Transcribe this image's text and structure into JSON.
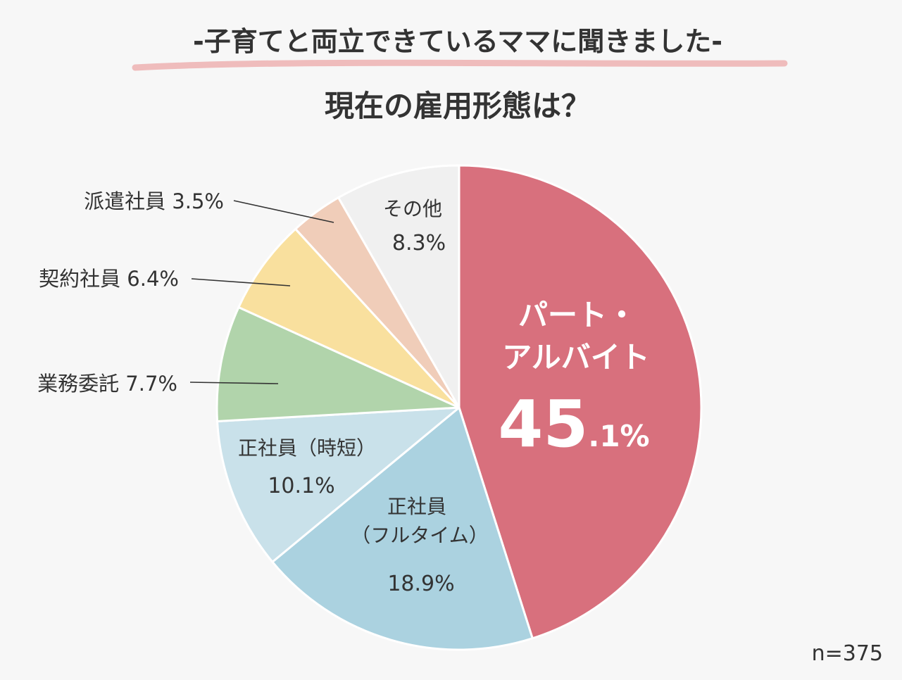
{
  "header": {
    "subtitle": "-子育てと両立できているママに聞きました-",
    "title": "現在の雇用形態は？"
  },
  "sample_note": "n=375",
  "colors": {
    "underline": "#efbcbc",
    "pie_outline": "#ffffff",
    "text": "#333333",
    "inside_white_text": "#ffffff",
    "leader_line": "#333333"
  },
  "chart_data": {
    "type": "pie",
    "start": "12 o'clock",
    "direction": "clockwise",
    "slices": [
      {
        "label": "パート・アルバイト",
        "label_lines": [
          "パート・",
          "アルバイト"
        ],
        "value": 45.1,
        "value_main": "45",
        "value_frac": ".1%",
        "color": "#d8707d",
        "label_position": "inside",
        "label_color": "#ffffff"
      },
      {
        "label": "正社員（フルタイム）",
        "label_lines": [
          "正社員",
          "（フルタイム）"
        ],
        "value": 18.9,
        "value_text": "18.9%",
        "color": "#abd2e0",
        "label_position": "inside"
      },
      {
        "label": "正社員（時短）",
        "label_lines": [
          "正社員（時短）"
        ],
        "value": 10.1,
        "value_text": "10.1%",
        "color": "#c9e1ea",
        "label_position": "inside"
      },
      {
        "label": "業務委託",
        "label_text": "業務委託 7.7%",
        "value": 7.7,
        "color": "#b1d4ab",
        "label_position": "left"
      },
      {
        "label": "契約社員",
        "label_text": "契約社員 6.4%",
        "value": 6.4,
        "color": "#f9e09e",
        "label_position": "left"
      },
      {
        "label": "派遣社員",
        "label_text": "派遣社員 3.5%",
        "value": 3.5,
        "color": "#f0cdb9",
        "label_position": "left"
      },
      {
        "label": "その他",
        "label_lines": [
          "その他"
        ],
        "value": 8.3,
        "value_text": "8.3%",
        "color": "#f0f0f0",
        "label_position": "inside"
      }
    ]
  }
}
